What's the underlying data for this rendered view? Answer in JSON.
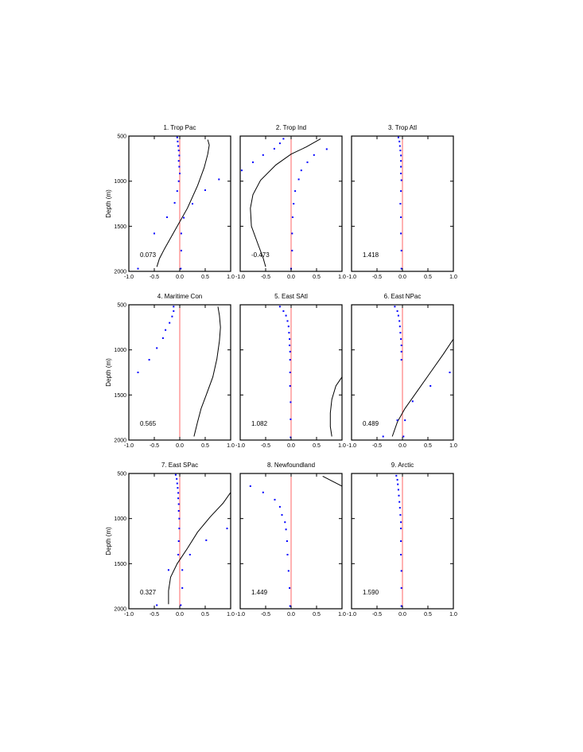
{
  "figure": {
    "ylabel": "Depth (m)",
    "colors": {
      "zero_line": "#ff6666",
      "points": "#0000ff",
      "curve": "#000000"
    }
  },
  "chart_data": [
    {
      "type": "scatter",
      "title": "1. Trop Pac",
      "annotation": "0.073",
      "xlim": [
        -1,
        1
      ],
      "ylim": [
        500,
        2000
      ],
      "y_inverted": true,
      "xticks": [
        "-1.0",
        "-0.5",
        "0.0",
        "0.5",
        "1.0"
      ],
      "yticks": [
        "500",
        "1000",
        "1500",
        "2000"
      ],
      "ylabel": "Depth (m)",
      "points": [
        [
          -0.05,
          515
        ],
        [
          -0.04,
          560
        ],
        [
          -0.03,
          610
        ],
        [
          -0.02,
          660
        ],
        [
          -0.01,
          715
        ],
        [
          -0.02,
          775
        ],
        [
          -0.01,
          840
        ],
        [
          0.0,
          915
        ],
        [
          0.77,
          980
        ],
        [
          -0.02,
          1000
        ],
        [
          0.5,
          1100
        ],
        [
          -0.05,
          1110
        ],
        [
          -0.1,
          1240
        ],
        [
          0.25,
          1250
        ],
        [
          -0.25,
          1400
        ],
        [
          0.08,
          1405
        ],
        [
          -0.5,
          1580
        ],
        [
          0.03,
          1580
        ],
        [
          0.03,
          1770
        ],
        [
          -0.82,
          1970
        ],
        [
          0.02,
          1970
        ]
      ],
      "curve": [
        [
          0.55,
          540
        ],
        [
          0.58,
          600
        ],
        [
          0.55,
          700
        ],
        [
          0.48,
          850
        ],
        [
          0.35,
          1050
        ],
        [
          0.15,
          1300
        ],
        [
          -0.1,
          1550
        ],
        [
          -0.3,
          1750
        ],
        [
          -0.4,
          1860
        ],
        [
          -0.45,
          1950
        ]
      ]
    },
    {
      "type": "scatter",
      "title": "2. Trop Ind",
      "annotation": "-0.473",
      "xlim": [
        -1,
        1
      ],
      "ylim": [
        500,
        2000
      ],
      "y_inverted": true,
      "xticks": [
        "-1.0",
        "-0.5",
        "0.0",
        "0.5",
        "1.0"
      ],
      "yticks": [
        "500",
        "1000",
        "1500",
        "2000"
      ],
      "ylabel": "",
      "points": [
        [
          -0.15,
          530
        ],
        [
          -0.22,
          580
        ],
        [
          -0.33,
          640
        ],
        [
          0.7,
          645
        ],
        [
          -0.55,
          710
        ],
        [
          0.45,
          710
        ],
        [
          -0.75,
          790
        ],
        [
          0.32,
          790
        ],
        [
          -0.97,
          880
        ],
        [
          0.2,
          880
        ],
        [
          0.15,
          980
        ],
        [
          0.08,
          1110
        ],
        [
          0.05,
          1250
        ],
        [
          0.03,
          1400
        ],
        [
          0.02,
          1580
        ],
        [
          0.02,
          1770
        ],
        [
          0.0,
          1970
        ]
      ],
      "curve": [
        [
          0.58,
          530
        ],
        [
          0.3,
          620
        ],
        [
          0.0,
          700
        ],
        [
          -0.3,
          820
        ],
        [
          -0.6,
          990
        ],
        [
          -0.75,
          1150
        ],
        [
          -0.8,
          1300
        ],
        [
          -0.78,
          1500
        ],
        [
          -0.65,
          1700
        ],
        [
          -0.55,
          1850
        ],
        [
          -0.5,
          1950
        ]
      ]
    },
    {
      "type": "scatter",
      "title": "3. Trop Atl",
      "annotation": "1.418",
      "xlim": [
        -1,
        1
      ],
      "ylim": [
        500,
        2000
      ],
      "y_inverted": true,
      "xticks": [
        "-1.0",
        "-0.5",
        "0.0",
        "0.5",
        "1.0"
      ],
      "yticks": [
        "500",
        "1000",
        "1500",
        "2000"
      ],
      "ylabel": "",
      "points": [
        [
          -0.08,
          515
        ],
        [
          -0.06,
          560
        ],
        [
          -0.05,
          610
        ],
        [
          -0.04,
          660
        ],
        [
          -0.03,
          715
        ],
        [
          -0.03,
          775
        ],
        [
          -0.03,
          840
        ],
        [
          -0.03,
          915
        ],
        [
          -0.02,
          990
        ],
        [
          -0.03,
          1110
        ],
        [
          -0.04,
          1250
        ],
        [
          -0.03,
          1400
        ],
        [
          -0.03,
          1580
        ],
        [
          -0.02,
          1770
        ],
        [
          -0.02,
          1970
        ]
      ],
      "curve": []
    },
    {
      "type": "scatter",
      "title": "4. Maritime Con",
      "annotation": "0.565",
      "xlim": [
        -1,
        1
      ],
      "ylim": [
        500,
        2000
      ],
      "y_inverted": true,
      "xticks": [
        "-1.0",
        "-0.5",
        "0.0",
        "0.5",
        "1.0"
      ],
      "yticks": [
        "500",
        "1000",
        "1500",
        "2000"
      ],
      "ylabel": "Depth (m)",
      "points": [
        [
          -0.12,
          520
        ],
        [
          -0.12,
          570
        ],
        [
          -0.15,
          630
        ],
        [
          -0.2,
          700
        ],
        [
          -0.28,
          780
        ],
        [
          -0.33,
          870
        ],
        [
          -0.45,
          980
        ],
        [
          -0.6,
          1110
        ],
        [
          -0.82,
          1250
        ]
      ],
      "curve": [
        [
          0.75,
          520
        ],
        [
          0.78,
          620
        ],
        [
          0.8,
          750
        ],
        [
          0.78,
          900
        ],
        [
          0.73,
          1100
        ],
        [
          0.65,
          1300
        ],
        [
          0.52,
          1500
        ],
        [
          0.42,
          1650
        ],
        [
          0.35,
          1800
        ],
        [
          0.28,
          1960
        ]
      ]
    },
    {
      "type": "scatter",
      "title": "5. East SAtl",
      "annotation": "1.082",
      "xlim": [
        -1,
        1
      ],
      "ylim": [
        500,
        2000
      ],
      "y_inverted": true,
      "xticks": [
        "-1.0",
        "-0.5",
        "0.0",
        "0.5",
        "1.0"
      ],
      "yticks": [
        "500",
        "1000",
        "1500",
        "2000"
      ],
      "ylabel": "",
      "points": [
        [
          -0.22,
          520
        ],
        [
          -0.15,
          570
        ],
        [
          -0.1,
          620
        ],
        [
          -0.07,
          680
        ],
        [
          -0.05,
          740
        ],
        [
          -0.04,
          810
        ],
        [
          -0.03,
          880
        ],
        [
          -0.03,
          950
        ],
        [
          -0.02,
          1020
        ],
        [
          -0.02,
          1110
        ],
        [
          -0.02,
          1250
        ],
        [
          -0.02,
          1400
        ],
        [
          -0.01,
          1580
        ],
        [
          -0.01,
          1770
        ],
        [
          -0.01,
          1970
        ]
      ],
      "curve": [
        [
          1.0,
          1300
        ],
        [
          0.88,
          1400
        ],
        [
          0.8,
          1550
        ],
        [
          0.77,
          1700
        ],
        [
          0.77,
          1850
        ],
        [
          0.8,
          1960
        ]
      ]
    },
    {
      "type": "scatter",
      "title": "6. East NPac",
      "annotation": "0.489",
      "xlim": [
        -1,
        1
      ],
      "ylim": [
        500,
        2000
      ],
      "y_inverted": true,
      "xticks": [
        "-1.0",
        "-0.5",
        "0.0",
        "0.5",
        "1.0"
      ],
      "yticks": [
        "500",
        "1000",
        "1500",
        "2000"
      ],
      "ylabel": "",
      "points": [
        [
          -0.15,
          520
        ],
        [
          -0.1,
          570
        ],
        [
          -0.08,
          620
        ],
        [
          -0.06,
          680
        ],
        [
          -0.05,
          740
        ],
        [
          -0.04,
          810
        ],
        [
          -0.03,
          880
        ],
        [
          -0.02,
          950
        ],
        [
          -0.02,
          1020
        ],
        [
          -0.02,
          1110
        ],
        [
          0.93,
          1250
        ],
        [
          0.55,
          1400
        ],
        [
          0.2,
          1570
        ],
        [
          -0.1,
          1780
        ],
        [
          0.05,
          1780
        ],
        [
          -0.38,
          1960
        ],
        [
          0.02,
          1960
        ]
      ],
      "curve": [
        [
          1.0,
          880
        ],
        [
          0.8,
          1050
        ],
        [
          0.55,
          1250
        ],
        [
          0.3,
          1450
        ],
        [
          0.05,
          1650
        ],
        [
          -0.1,
          1800
        ],
        [
          -0.2,
          1960
        ]
      ]
    },
    {
      "type": "scatter",
      "title": "7. East SPac",
      "annotation": "0.327",
      "xlim": [
        -1,
        1
      ],
      "ylim": [
        500,
        2000
      ],
      "y_inverted": true,
      "xticks": [
        "-1.0",
        "-0.5",
        "0.0",
        "0.5",
        "1.0"
      ],
      "yticks": [
        "500",
        "1000",
        "1500",
        "2000"
      ],
      "ylabel": "Depth (m)",
      "points": [
        [
          -0.08,
          515
        ],
        [
          -0.06,
          560
        ],
        [
          -0.05,
          610
        ],
        [
          -0.04,
          660
        ],
        [
          -0.03,
          715
        ],
        [
          -0.03,
          775
        ],
        [
          -0.02,
          840
        ],
        [
          -0.02,
          915
        ],
        [
          -0.01,
          1000
        ],
        [
          0.93,
          1110
        ],
        [
          -0.01,
          1110
        ],
        [
          0.52,
          1240
        ],
        [
          -0.02,
          1250
        ],
        [
          0.2,
          1400
        ],
        [
          -0.03,
          1400
        ],
        [
          -0.22,
          1570
        ],
        [
          0.05,
          1570
        ],
        [
          0.05,
          1770
        ],
        [
          -0.45,
          1960
        ],
        [
          0.02,
          1960
        ]
      ],
      "curve": [
        [
          1.0,
          710
        ],
        [
          0.85,
          830
        ],
        [
          0.6,
          980
        ],
        [
          0.35,
          1150
        ],
        [
          0.15,
          1330
        ],
        [
          -0.05,
          1500
        ],
        [
          -0.18,
          1650
        ],
        [
          -0.22,
          1800
        ],
        [
          -0.22,
          1950
        ]
      ]
    },
    {
      "type": "scatter",
      "title": "8. Newfoundland",
      "annotation": "1.449",
      "xlim": [
        -1,
        1
      ],
      "ylim": [
        500,
        2000
      ],
      "y_inverted": true,
      "xticks": [
        "-1.0",
        "-0.5",
        "0.0",
        "0.5",
        "1.0"
      ],
      "yticks": [
        "500",
        "1000",
        "1500",
        "2000"
      ],
      "ylabel": "",
      "points": [
        [
          -0.8,
          640
        ],
        [
          -0.55,
          710
        ],
        [
          -0.32,
          790
        ],
        [
          -0.22,
          870
        ],
        [
          -0.18,
          960
        ],
        [
          -0.12,
          1040
        ],
        [
          -0.1,
          1120
        ],
        [
          -0.08,
          1250
        ],
        [
          -0.07,
          1400
        ],
        [
          -0.05,
          1580
        ],
        [
          -0.03,
          1770
        ],
        [
          -0.02,
          1970
        ]
      ],
      "curve": [
        [
          0.62,
          530
        ],
        [
          1.0,
          640
        ]
      ]
    },
    {
      "type": "scatter",
      "title": "9. Arctic",
      "annotation": "1.590",
      "xlim": [
        -1,
        1
      ],
      "ylim": [
        500,
        2000
      ],
      "y_inverted": true,
      "xticks": [
        "-1.0",
        "-0.5",
        "0.0",
        "0.5",
        "1.0"
      ],
      "yticks": [
        "500",
        "1000",
        "1500",
        "2000"
      ],
      "ylabel": "",
      "points": [
        [
          -0.12,
          525
        ],
        [
          -0.1,
          570
        ],
        [
          -0.09,
          620
        ],
        [
          -0.08,
          680
        ],
        [
          -0.07,
          745
        ],
        [
          -0.06,
          815
        ],
        [
          -0.05,
          880
        ],
        [
          -0.04,
          960
        ],
        [
          -0.03,
          1040
        ],
        [
          -0.03,
          1110
        ],
        [
          -0.03,
          1250
        ],
        [
          -0.03,
          1400
        ],
        [
          -0.02,
          1580
        ],
        [
          -0.02,
          1770
        ],
        [
          -0.02,
          1970
        ]
      ],
      "curve": []
    }
  ]
}
